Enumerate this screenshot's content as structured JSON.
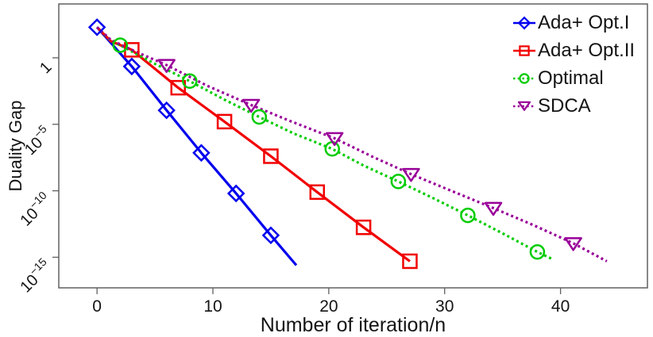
{
  "figure": {
    "background": "#ffffff",
    "axis_color": "#606060",
    "text_color": "#141414"
  },
  "chart_data": {
    "type": "line",
    "title": "",
    "xlabel": "Number of iteration/n",
    "ylabel": "Duality Gap",
    "x_scale": "linear",
    "y_scale": "log10",
    "xlim": [
      -3.3,
      47.5
    ],
    "ylim_log10": [
      -17.3,
      4.05
    ],
    "grid": false,
    "legend_position": "top-right",
    "x_ticks": [
      0,
      10,
      20,
      30,
      40
    ],
    "y_ticks": [
      {
        "log": 0,
        "base": "1",
        "exp": ""
      },
      {
        "log": -5,
        "base": "10",
        "exp": "−5"
      },
      {
        "log": -10,
        "base": "10",
        "exp": "−10"
      },
      {
        "log": -15,
        "base": "10",
        "exp": "−15"
      }
    ],
    "series": [
      {
        "name": "Ada+ Opt.I",
        "color": "#0000ee",
        "line_style": "solid",
        "marker": "diamond",
        "line": [
          [
            0,
            2.3
          ],
          [
            3,
            -0.65
          ],
          [
            6,
            -3.95
          ],
          [
            9,
            -7.15
          ],
          [
            12,
            -10.2
          ],
          [
            15,
            -13.35
          ],
          [
            17.2,
            -15.6
          ]
        ],
        "markers": [
          [
            0,
            2.3
          ],
          [
            3,
            -0.65
          ],
          [
            6,
            -3.95
          ],
          [
            9,
            -7.15
          ],
          [
            12,
            -10.2
          ],
          [
            15,
            -13.35
          ]
        ]
      },
      {
        "name": "Ada+ Opt.II",
        "color": "#f10000",
        "line_style": "solid",
        "marker": "square",
        "line": [
          [
            0,
            2.3
          ],
          [
            1.2,
            1.25
          ],
          [
            3,
            0.6
          ],
          [
            7,
            -2.25
          ],
          [
            11,
            -4.8
          ],
          [
            15,
            -7.4
          ],
          [
            19,
            -10.1
          ],
          [
            23,
            -12.75
          ],
          [
            27,
            -15.3
          ]
        ],
        "markers": [
          [
            3,
            0.6
          ],
          [
            7,
            -2.25
          ],
          [
            11,
            -4.8
          ],
          [
            15,
            -7.4
          ],
          [
            19,
            -10.1
          ],
          [
            23,
            -12.75
          ],
          [
            27,
            -15.3
          ]
        ]
      },
      {
        "name": "Optimal",
        "color": "#00cc00",
        "line_style": "dotted",
        "marker": "circle",
        "line": [
          [
            0,
            2.3
          ],
          [
            1.2,
            1.3
          ],
          [
            2,
            0.95
          ],
          [
            5,
            -0.45
          ],
          [
            8,
            -1.75
          ],
          [
            11,
            -3.15
          ],
          [
            14,
            -4.45
          ],
          [
            17,
            -5.7
          ],
          [
            20.3,
            -6.85
          ],
          [
            23,
            -8.1
          ],
          [
            26,
            -9.3
          ],
          [
            29,
            -10.55
          ],
          [
            32,
            -11.85
          ],
          [
            35,
            -13.2
          ],
          [
            38,
            -14.6
          ],
          [
            39.2,
            -15.1
          ]
        ],
        "markers": [
          [
            2,
            0.95
          ],
          [
            8,
            -1.75
          ],
          [
            14,
            -4.45
          ],
          [
            20.3,
            -6.85
          ],
          [
            26,
            -9.3
          ],
          [
            32,
            -11.85
          ],
          [
            38,
            -14.6
          ]
        ]
      },
      {
        "name": "SDCA",
        "color": "#990099",
        "line_style": "dotted",
        "marker": "triangle-down",
        "line": [
          [
            0,
            2.3
          ],
          [
            1.2,
            1.35
          ],
          [
            3,
            0.6
          ],
          [
            6,
            -0.55
          ],
          [
            9.5,
            -2.1
          ],
          [
            13.3,
            -3.55
          ],
          [
            16.8,
            -4.8
          ],
          [
            20.5,
            -6.05
          ],
          [
            23.8,
            -7.45
          ],
          [
            27.1,
            -8.75
          ],
          [
            30.7,
            -10.05
          ],
          [
            34.2,
            -11.3
          ],
          [
            37.7,
            -12.6
          ],
          [
            41.1,
            -13.95
          ],
          [
            44,
            -15.3
          ]
        ],
        "markers": [
          [
            6,
            -0.55
          ],
          [
            13.3,
            -3.55
          ],
          [
            20.5,
            -6.05
          ],
          [
            27.1,
            -8.75
          ],
          [
            34.2,
            -11.3
          ],
          [
            41.1,
            -13.95
          ]
        ]
      }
    ]
  }
}
